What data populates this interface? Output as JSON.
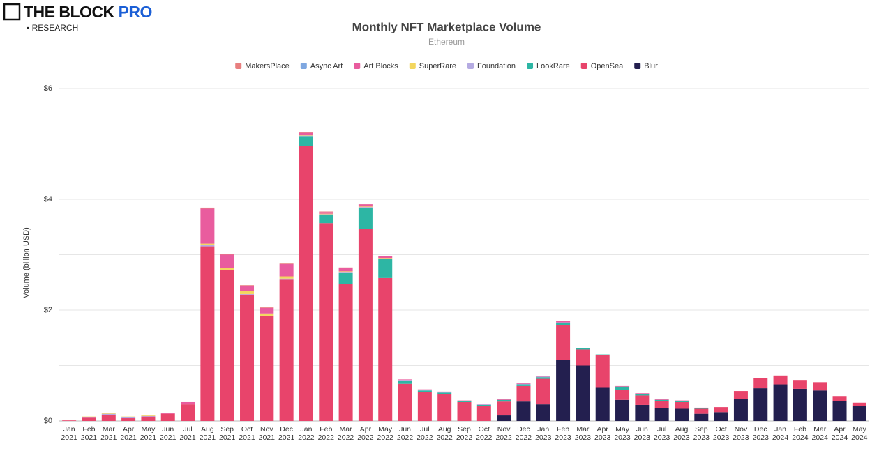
{
  "brand": {
    "name": "THE BLOCK",
    "tier": "PRO",
    "sub": "RESEARCH"
  },
  "chart_data": {
    "type": "stacked-bar",
    "title": "Monthly NFT Marketplace Volume",
    "subtitle": "Ethereum",
    "y_label": "Volume (billion USD)",
    "categories": [
      "Jan 2021",
      "Feb 2021",
      "Mar 2021",
      "Apr 2021",
      "May 2021",
      "Jun 2021",
      "Jul 2021",
      "Aug 2021",
      "Sep 2021",
      "Oct 2021",
      "Nov 2021",
      "Dec 2021",
      "Jan 2022",
      "Feb 2022",
      "Mar 2022",
      "Apr 2022",
      "May 2022",
      "Jun 2022",
      "Jul 2022",
      "Aug 2022",
      "Sep 2022",
      "Oct 2022",
      "Nov 2022",
      "Dec 2022",
      "Jan 2023",
      "Feb 2023",
      "Mar 2023",
      "Apr 2023",
      "May 2023",
      "Jun 2023",
      "Jul 2023",
      "Aug 2023",
      "Sep 2023",
      "Oct 2023",
      "Nov 2023",
      "Dec 2023",
      "Jan 2024",
      "Feb 2024",
      "Mar 2024",
      "Apr 2024",
      "May 2024"
    ],
    "series": [
      {
        "name": "MakersPlace",
        "color": "#e87f7f",
        "values": [
          0,
          0,
          0,
          0,
          0,
          0,
          0,
          0.02,
          0.01,
          0.01,
          0.01,
          0.01,
          0.01,
          0.01,
          0.01,
          0.01,
          0.01,
          0,
          0,
          0,
          0,
          0,
          0,
          0,
          0,
          0,
          0,
          0,
          0,
          0,
          0,
          0,
          0,
          0,
          0,
          0,
          0,
          0,
          0,
          0,
          0
        ]
      },
      {
        "name": "Async Art",
        "color": "#7ea7e0",
        "values": [
          0,
          0,
          0,
          0,
          0,
          0,
          0,
          0,
          0,
          0,
          0,
          0,
          0,
          0,
          0,
          0,
          0,
          0,
          0,
          0,
          0,
          0,
          0,
          0,
          0,
          0,
          0,
          0,
          0,
          0,
          0,
          0,
          0,
          0,
          0,
          0,
          0,
          0,
          0,
          0,
          0
        ]
      },
      {
        "name": "Art Blocks",
        "color": "#e95c9e",
        "values": [
          0,
          0,
          0,
          0,
          0,
          0.01,
          0.04,
          0.63,
          0.24,
          0.1,
          0.1,
          0.22,
          0.03,
          0.03,
          0.06,
          0.04,
          0.03,
          0.01,
          0.01,
          0.01,
          0.01,
          0.01,
          0.01,
          0.01,
          0.01,
          0.02,
          0.01,
          0,
          0.01,
          0.01,
          0.01,
          0.01,
          0.01,
          0,
          0,
          0,
          0,
          0,
          0,
          0,
          0
        ]
      },
      {
        "name": "SuperRare",
        "color": "#f3d65e",
        "values": [
          0,
          0.01,
          0.02,
          0.01,
          0.01,
          0,
          0,
          0.03,
          0.03,
          0.05,
          0.04,
          0.04,
          0.02,
          0.01,
          0.01,
          0.01,
          0.01,
          0,
          0,
          0,
          0,
          0,
          0,
          0,
          0,
          0,
          0,
          0,
          0,
          0,
          0,
          0,
          0,
          0,
          0,
          0,
          0,
          0,
          0,
          0,
          0
        ]
      },
      {
        "name": "Foundation",
        "color": "#b5abe2",
        "values": [
          0,
          0.01,
          0.02,
          0.02,
          0.01,
          0,
          0,
          0.02,
          0.01,
          0.01,
          0.01,
          0.02,
          0.01,
          0.01,
          0.02,
          0.02,
          0.01,
          0.01,
          0.01,
          0.01,
          0,
          0.01,
          0,
          0.01,
          0.01,
          0.01,
          0,
          0,
          0,
          0,
          0,
          0,
          0,
          0,
          0,
          0,
          0,
          0,
          0,
          0,
          0
        ]
      },
      {
        "name": "LookRare",
        "color": "#2db6a4",
        "values": [
          0,
          0,
          0,
          0,
          0,
          0,
          0,
          0,
          0,
          0,
          0,
          0,
          0.18,
          0.15,
          0.2,
          0.37,
          0.34,
          0.06,
          0.03,
          0.02,
          0.02,
          0.02,
          0.03,
          0.03,
          0.03,
          0.04,
          0.02,
          0.01,
          0.06,
          0.03,
          0.02,
          0.02,
          0.01,
          0,
          0,
          0,
          0,
          0,
          0,
          0,
          0
        ]
      },
      {
        "name": "OpenSea",
        "color": "#e8446b",
        "values": [
          0.01,
          0.06,
          0.11,
          0.05,
          0.08,
          0.13,
          0.3,
          3.15,
          2.72,
          2.28,
          1.89,
          2.55,
          4.96,
          3.57,
          2.47,
          3.47,
          2.58,
          0.67,
          0.52,
          0.49,
          0.34,
          0.27,
          0.25,
          0.28,
          0.46,
          0.63,
          0.29,
          0.58,
          0.18,
          0.17,
          0.13,
          0.12,
          0.09,
          0.09,
          0.14,
          0.18,
          0.16,
          0.16,
          0.15,
          0.09,
          0.06
        ]
      },
      {
        "name": "Blur",
        "color": "#231f4f",
        "values": [
          0,
          0,
          0,
          0,
          0,
          0,
          0,
          0,
          0,
          0,
          0,
          0,
          0,
          0,
          0,
          0,
          0,
          0,
          0,
          0,
          0,
          0,
          0.1,
          0.35,
          0.3,
          1.1,
          1.0,
          0.61,
          0.38,
          0.29,
          0.23,
          0.22,
          0.13,
          0.16,
          0.4,
          0.59,
          0.66,
          0.58,
          0.55,
          0.36,
          0.27
        ]
      }
    ],
    "ylim": [
      0,
      6
    ],
    "yticks": [
      {
        "value": 0,
        "label": "$0"
      },
      {
        "value": 2,
        "label": "$2"
      },
      {
        "value": 4,
        "label": "$4"
      },
      {
        "value": 6,
        "label": "$6"
      }
    ],
    "yminor": [
      1,
      3,
      5
    ],
    "grid": true,
    "legend": "top"
  }
}
